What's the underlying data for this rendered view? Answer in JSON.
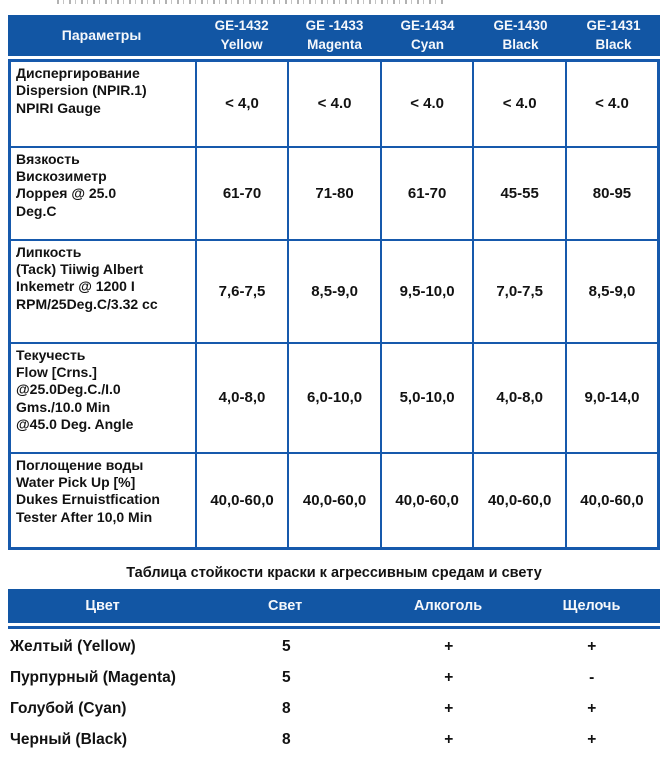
{
  "colors": {
    "header_bg": "#1256A4",
    "table_border": "#1659AC",
    "header_text": "#F6F8FB",
    "body_text": "#121212"
  },
  "top_fragment_note": "unreadable clipped text line at top edge",
  "spec_table": {
    "header": {
      "param_label": "Параметры",
      "columns": [
        "GE-1432\nYellow",
        "GE -1433\nMagenta",
        "GE-1434\nCyan",
        "GE-1430\nBlack",
        "GE-1431\nBlack"
      ]
    },
    "rows": [
      {
        "param": "Диспергирование\nDispersion (NPIR.1)\nNPIRI Gauge",
        "values": [
          "< 4,0",
          "< 4.0",
          "< 4.0",
          "< 4.0",
          "< 4.0"
        ]
      },
      {
        "param": "Вязкость\nВискозиметр\nЛоррея @ 25.0\nDeg.C",
        "values": [
          "61-70",
          "71-80",
          "61-70",
          "45-55",
          "80-95"
        ]
      },
      {
        "param": "Липкость\n(Tack) Tiiwig Albert\nInkemetr @ 1200 I\nRPM/25Deg.C/3.32 cc",
        "values": [
          "7,6-7,5",
          "8,5-9,0",
          "9,5-10,0",
          "7,0-7,5",
          "8,5-9,0"
        ]
      },
      {
        "param": "Текучесть\nFlow [Crns.]\n@25.0Deg.C./I.0\nGms./10.0 Min\n@45.0 Deg. Angle",
        "values": [
          "4,0-8,0",
          "6,0-10,0",
          "5,0-10,0",
          "4,0-8,0",
          "9,0-14,0"
        ]
      },
      {
        "param": "Поглощение воды\nWater Pick Up [%]\nDukes Ernuistfication\nTester After 10,0 Min",
        "values": [
          "40,0-60,0",
          "40,0-60,0",
          "40,0-60,0",
          "40,0-60,0",
          "40,0-60,0"
        ]
      }
    ]
  },
  "resistance_table": {
    "title": "Таблица стойкости краски к агрессивным средам и свету",
    "headers": [
      "Цвет",
      "Свет",
      "Алкоголь",
      "Щелочь"
    ],
    "rows": [
      {
        "cells": [
          "Желтый (Yellow)",
          "5",
          "+",
          "+"
        ]
      },
      {
        "cells": [
          "Пурпурный (Magenta)",
          "5",
          "+",
          "-"
        ]
      },
      {
        "cells": [
          "Голубой (Cyan)",
          "8",
          "+",
          "+"
        ]
      },
      {
        "cells": [
          "Черный (Black)",
          "8",
          "+",
          "+"
        ]
      }
    ]
  }
}
